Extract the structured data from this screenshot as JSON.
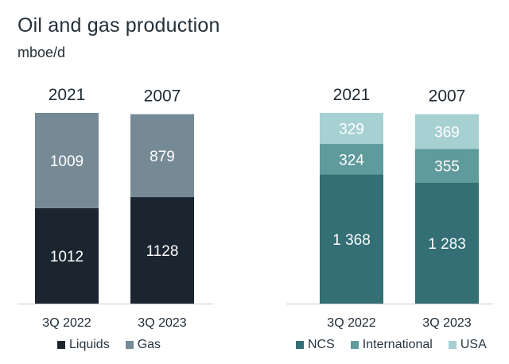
{
  "header": {
    "title": "Oil and gas production",
    "subtitle": "mboe/d"
  },
  "chart_data": [
    {
      "type": "bar",
      "stacked": true,
      "categories": [
        "3Q 2022",
        "3Q 2023"
      ],
      "totals": [
        "2021",
        "2007"
      ],
      "series": [
        {
          "name": "Liquids",
          "color": "#1b2530",
          "values": [
            1012,
            1128
          ],
          "labels": [
            "1012",
            "1128"
          ]
        },
        {
          "name": "Gas",
          "color": "#768a96",
          "values": [
            1009,
            879
          ],
          "labels": [
            "1009",
            "879"
          ]
        }
      ],
      "ylim": [
        0,
        2100
      ],
      "legend_position": "bottom-left"
    },
    {
      "type": "bar",
      "stacked": true,
      "categories": [
        "3Q 2022",
        "3Q 2023"
      ],
      "totals": [
        "2021",
        "2007"
      ],
      "series": [
        {
          "name": "NCS",
          "color": "#336f74",
          "values": [
            1368,
            1283
          ],
          "labels": [
            "1 368",
            "1 283"
          ]
        },
        {
          "name": "International",
          "color": "#5f9a9c",
          "values": [
            324,
            355
          ],
          "labels": [
            "324",
            "355"
          ]
        },
        {
          "name": "USA",
          "color": "#a6d0d2",
          "values": [
            329,
            369
          ],
          "labels": [
            "329",
            "369"
          ]
        }
      ],
      "ylim": [
        0,
        2100
      ],
      "legend_position": "bottom-right"
    }
  ]
}
